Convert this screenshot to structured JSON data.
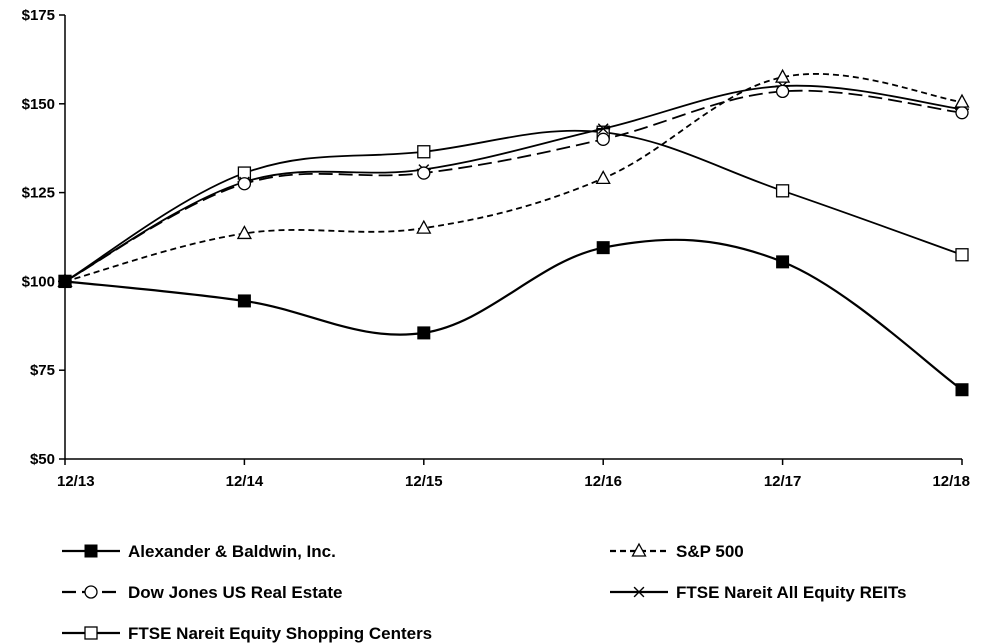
{
  "chart_data": {
    "type": "line",
    "categories": [
      "12/13",
      "12/14",
      "12/15",
      "12/16",
      "12/17",
      "12/18"
    ],
    "ylim": [
      50,
      175
    ],
    "yticks": [
      {
        "value": 50,
        "label": "$50"
      },
      {
        "value": 75,
        "label": "$75"
      },
      {
        "value": 100,
        "label": "$100"
      },
      {
        "value": 125,
        "label": "$125"
      },
      {
        "value": 150,
        "label": "$150"
      },
      {
        "value": 175,
        "label": "$175"
      }
    ],
    "grid": false,
    "legend_position": "bottom",
    "series": [
      {
        "name": "Alexander & Baldwin, Inc.",
        "values": [
          100,
          94.5,
          85.5,
          109.5,
          105.5,
          69.5
        ],
        "marker": "filled-square",
        "dash": "solid",
        "color": "#000000"
      },
      {
        "name": "S&P 500",
        "values": [
          100,
          113.5,
          115,
          129,
          157.5,
          150.5
        ],
        "marker": "triangle",
        "dash": "short-dash",
        "color": "#000000"
      },
      {
        "name": "Dow Jones US Real Estate",
        "values": [
          100,
          127.5,
          130.5,
          140,
          153.5,
          147.5
        ],
        "marker": "circle",
        "dash": "long-dash",
        "color": "#000000"
      },
      {
        "name": "FTSE Nareit All Equity REITs",
        "values": [
          100,
          128,
          131.5,
          143,
          155,
          148.5
        ],
        "marker": "asterisk",
        "dash": "solid",
        "color": "#000000"
      },
      {
        "name": "FTSE Nareit Equity Shopping Centers",
        "values": [
          100,
          130.5,
          136.5,
          142,
          125.5,
          107.5
        ],
        "marker": "open-square",
        "dash": "solid",
        "color": "#000000"
      }
    ]
  }
}
